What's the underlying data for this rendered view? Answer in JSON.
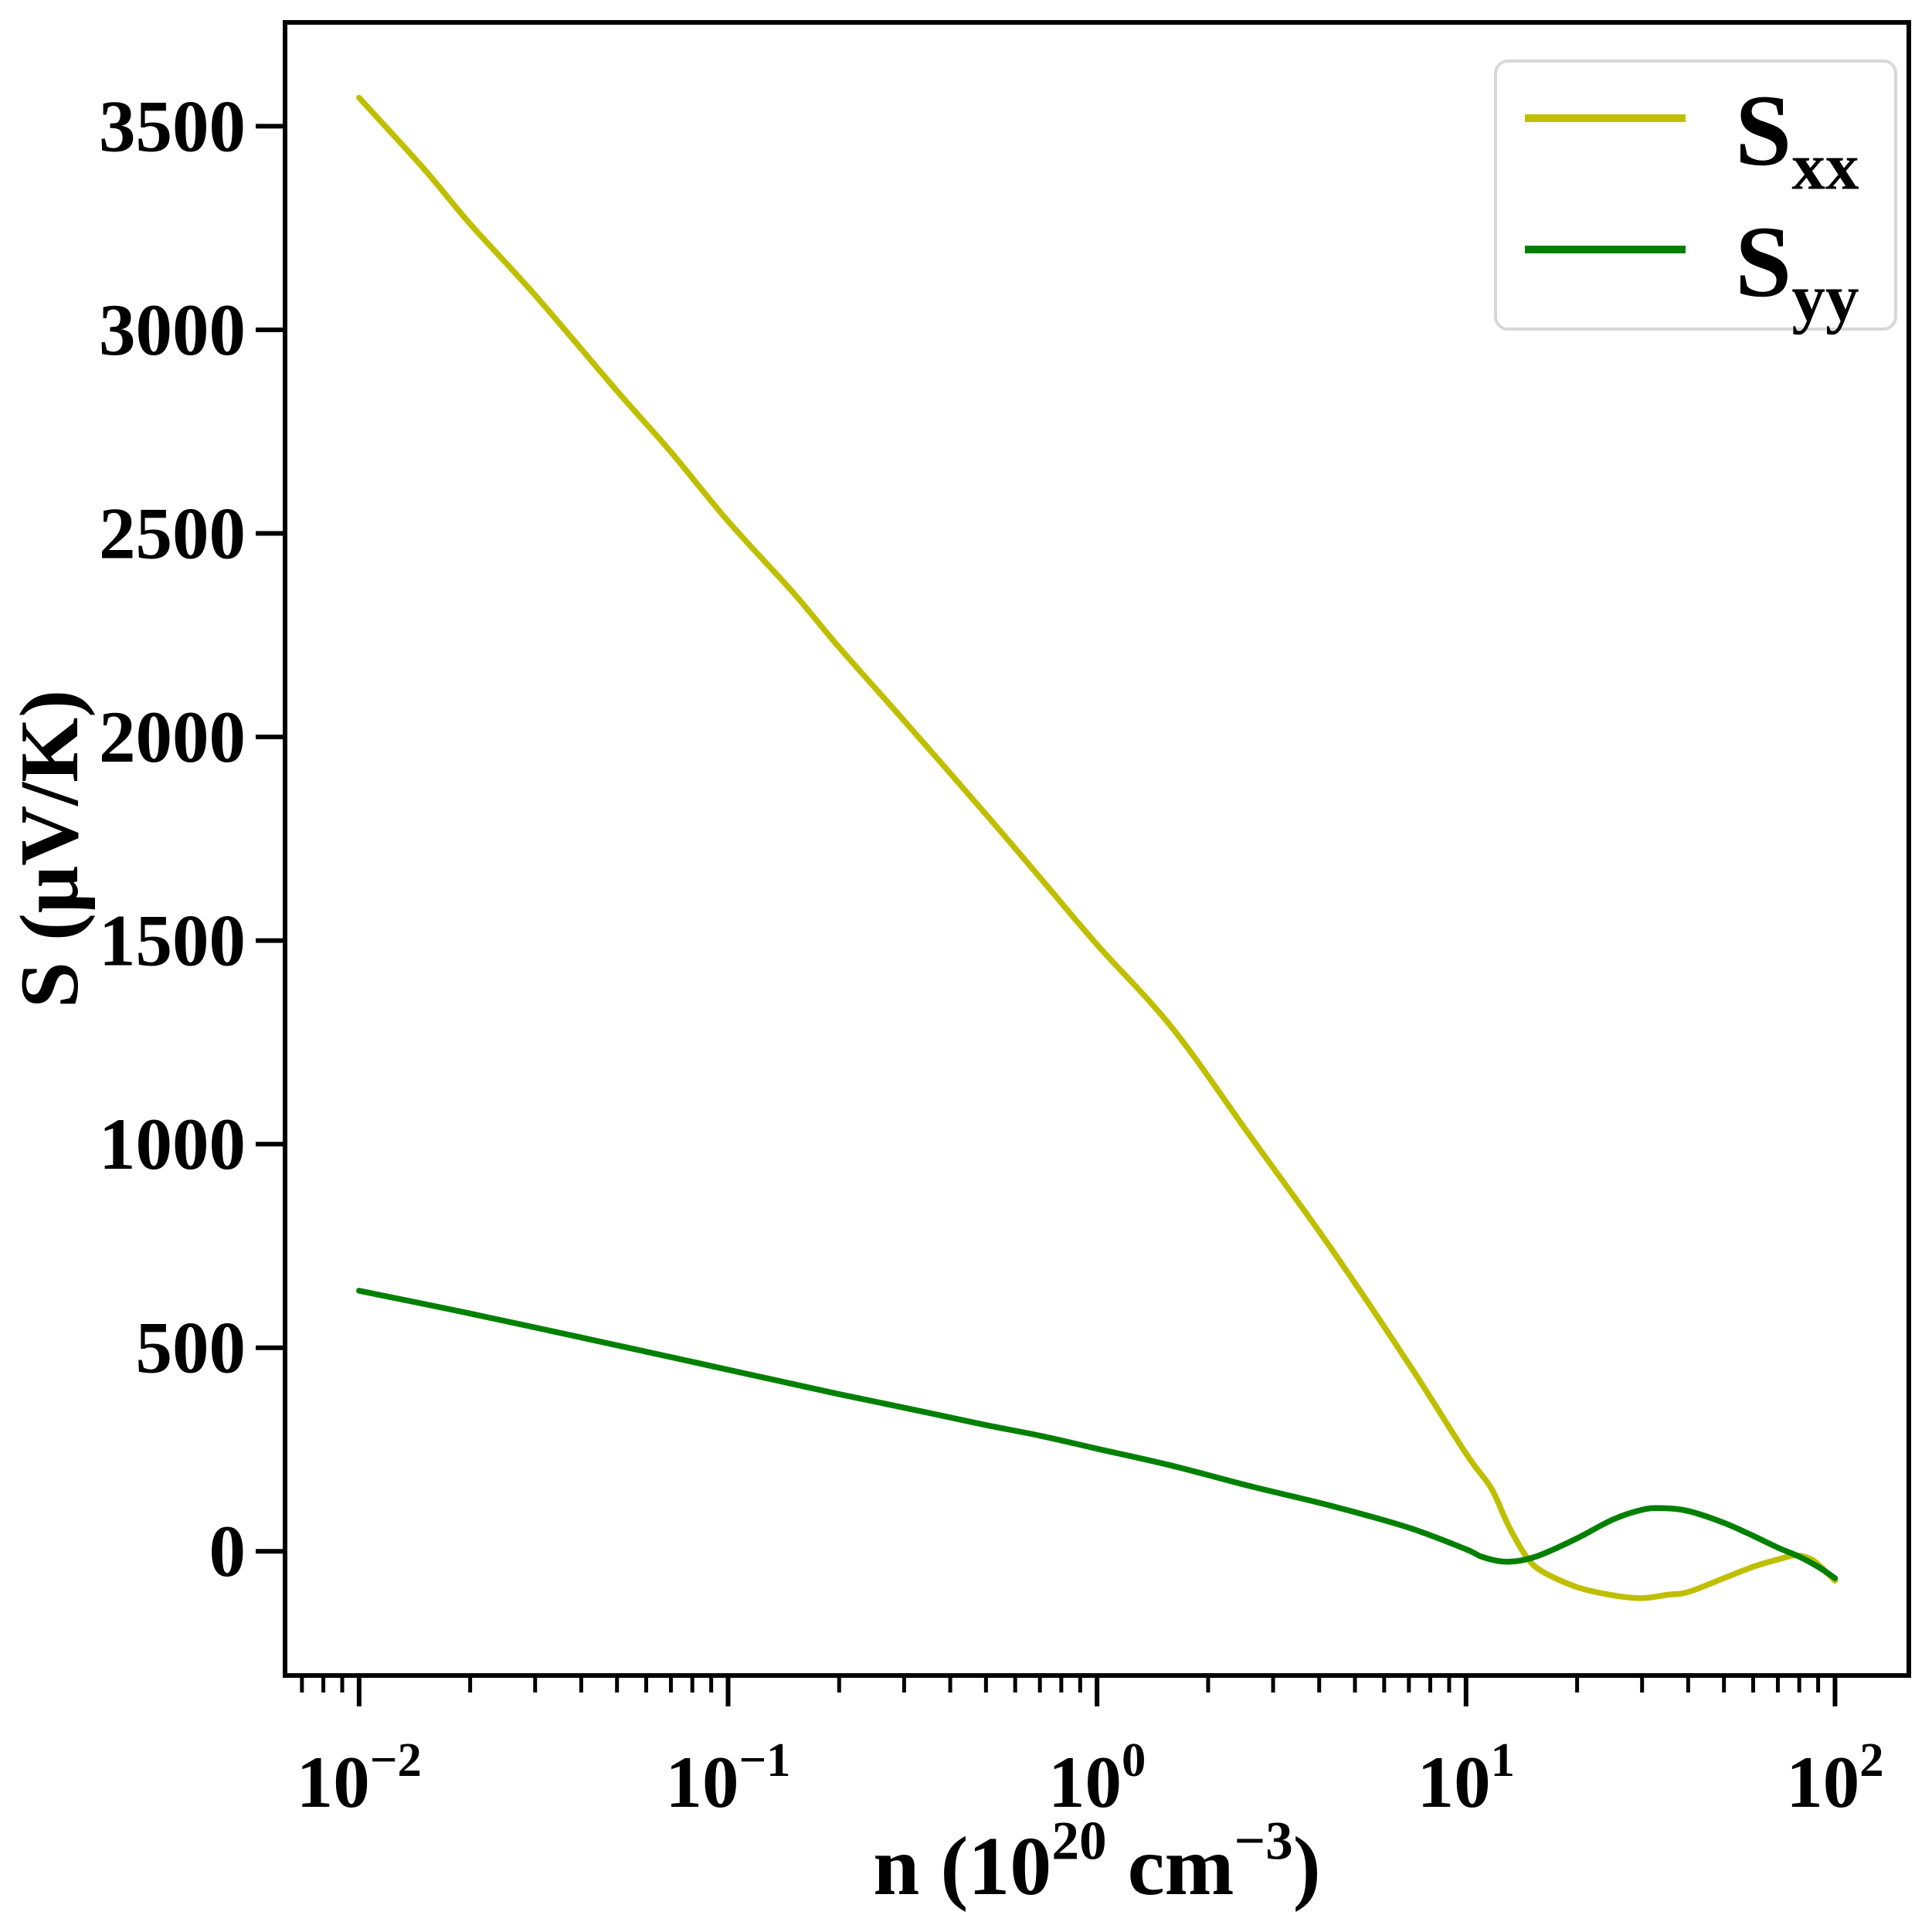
{
  "page": {
    "background": "#ffffff"
  },
  "chart_data": {
    "type": "line",
    "title": "",
    "x_scale": "log",
    "grid": false,
    "xlabel": "n (10^{20} cm^{−3})",
    "ylabel": "S (μV/K)",
    "xlim": [
      0.0063,
      158.5
    ],
    "ylim": [
      -305,
      3755
    ],
    "legend_position": "upper right",
    "x_ticks": {
      "values": [
        0.01,
        0.1,
        1,
        10,
        100
      ],
      "labels": [
        "10^{−2}",
        "10^{−1}",
        "10^{0}",
        "10^{1}",
        "10^{2}"
      ]
    },
    "y_ticks": {
      "values": [
        0,
        500,
        1000,
        1500,
        2000,
        2500,
        3000,
        3500
      ],
      "labels": [
        "0",
        "500",
        "1000",
        "1500",
        "2000",
        "2500",
        "3000",
        "3500"
      ]
    },
    "series": [
      {
        "name": "S_{xx}",
        "color": "#bfbf00",
        "points": [
          [
            0.01,
            3570
          ],
          [
            0.015,
            3395
          ],
          [
            0.02,
            3260
          ],
          [
            0.03,
            3085
          ],
          [
            0.05,
            2850
          ],
          [
            0.07,
            2700
          ],
          [
            0.1,
            2530
          ],
          [
            0.15,
            2355
          ],
          [
            0.2,
            2220
          ],
          [
            0.3,
            2040
          ],
          [
            0.5,
            1810
          ],
          [
            0.7,
            1655
          ],
          [
            1,
            1490
          ],
          [
            1.6,
            1285
          ],
          [
            2.6,
            1020
          ],
          [
            4.3,
            745
          ],
          [
            7,
            460
          ],
          [
            10,
            240
          ],
          [
            11.7,
            155
          ],
          [
            13,
            65
          ],
          [
            14.5,
            -10
          ],
          [
            16,
            -48
          ],
          [
            20,
            -88
          ],
          [
            25,
            -108
          ],
          [
            30,
            -115
          ],
          [
            35,
            -107
          ],
          [
            40,
            -100
          ],
          [
            50,
            -66
          ],
          [
            60,
            -38
          ],
          [
            70,
            -20
          ],
          [
            78,
            -10
          ],
          [
            85,
            -17
          ],
          [
            90,
            -32
          ],
          [
            100,
            -72
          ]
        ]
      },
      {
        "name": "S_{yy}",
        "color": "#008000",
        "points": [
          [
            0.01,
            640
          ],
          [
            0.02,
            584
          ],
          [
            0.05,
            506
          ],
          [
            0.1,
            446
          ],
          [
            0.2,
            386
          ],
          [
            0.35,
            340
          ],
          [
            0.5,
            310
          ],
          [
            0.7,
            284
          ],
          [
            1,
            252
          ],
          [
            1.6,
            210
          ],
          [
            2.6,
            160
          ],
          [
            4.3,
            112
          ],
          [
            7,
            58
          ],
          [
            10,
            5
          ],
          [
            11,
            -13
          ],
          [
            12.5,
            -25
          ],
          [
            14,
            -23
          ],
          [
            16,
            -8
          ],
          [
            20,
            32
          ],
          [
            25,
            78
          ],
          [
            30,
            102
          ],
          [
            34,
            106
          ],
          [
            40,
            99
          ],
          [
            50,
            70
          ],
          [
            60,
            38
          ],
          [
            70,
            9
          ],
          [
            80,
            -13
          ],
          [
            90,
            -38
          ],
          [
            100,
            -66
          ]
        ]
      }
    ]
  },
  "style": {
    "axis_color": "#000000",
    "legend_border_color": "#d8d8d8",
    "legend_background": "#ffffff"
  }
}
